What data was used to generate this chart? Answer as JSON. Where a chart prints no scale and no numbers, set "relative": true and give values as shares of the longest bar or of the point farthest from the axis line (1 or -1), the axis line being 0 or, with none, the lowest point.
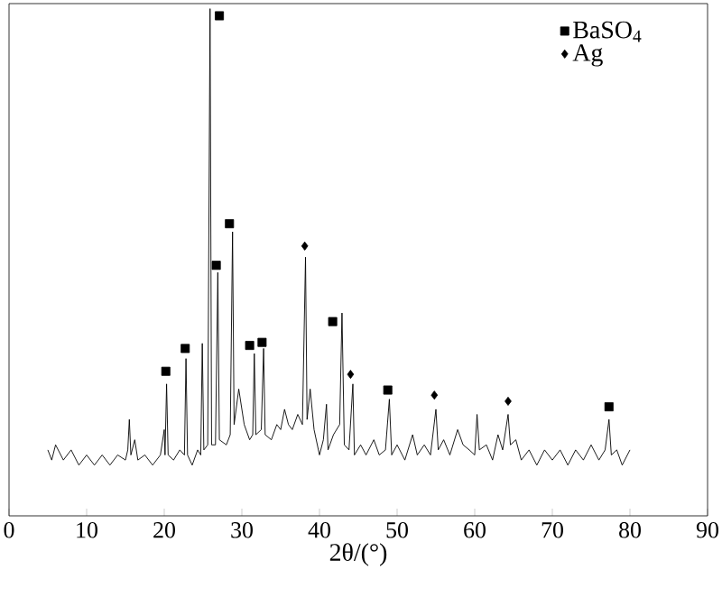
{
  "chart_data": {
    "type": "line",
    "relative": true,
    "xlabel": "2θ/(°)",
    "xlim": [
      0,
      90
    ],
    "xticks": [
      0,
      10,
      20,
      30,
      40,
      50,
      60,
      70,
      80,
      90
    ],
    "legend": "top right",
    "grid": false,
    "series": [
      {
        "color": "#000000",
        "marker": "none",
        "x": [
          5,
          5.5,
          6,
          7,
          8,
          9,
          10,
          11,
          12,
          13,
          14,
          15,
          15.3,
          15.5,
          15.7,
          16.2,
          16.6,
          17.5,
          18.5,
          19.5,
          20.0,
          20.1,
          20.3,
          20.5,
          21.2,
          22,
          22.6,
          22.8,
          23.0,
          23.6,
          24.3,
          24.7,
          24.9,
          25.1,
          25.6,
          25.9,
          26.1,
          26.6,
          26.9,
          27.1,
          28.0,
          28.5,
          28.8,
          29.0,
          29.6,
          30.3,
          31.0,
          31.4,
          31.6,
          31.8,
          32.5,
          32.8,
          33.0,
          33.8,
          34.5,
          35.0,
          35.5,
          36,
          36.5,
          37.2,
          37.8,
          38.2,
          38.4,
          38.8,
          39.3,
          40.0,
          40.5,
          40.9,
          41.1,
          41.8,
          42.6,
          42.9,
          43.2,
          43.8,
          44.3,
          44.5,
          45.3,
          46,
          47,
          47.7,
          48.5,
          49.0,
          49.3,
          50,
          51,
          52,
          52.6,
          53.5,
          54.3,
          55.0,
          55.3,
          56,
          56.8,
          57.8,
          58.5,
          59.3,
          60.0,
          60.3,
          60.6,
          61.5,
          62.3,
          63,
          63.6,
          64.3,
          64.6,
          65.3,
          66,
          67,
          68,
          69,
          70,
          71,
          72,
          73,
          74,
          75,
          76,
          76.8,
          77.3,
          77.6,
          78.3,
          79,
          80
        ],
        "values": [
          0.13,
          0.11,
          0.14,
          0.11,
          0.13,
          0.1,
          0.12,
          0.1,
          0.12,
          0.1,
          0.12,
          0.11,
          0.13,
          0.19,
          0.12,
          0.15,
          0.11,
          0.12,
          0.1,
          0.12,
          0.17,
          0.12,
          0.26,
          0.12,
          0.11,
          0.13,
          0.12,
          0.31,
          0.12,
          0.1,
          0.13,
          0.12,
          0.34,
          0.13,
          0.14,
          1.0,
          0.14,
          0.14,
          0.48,
          0.15,
          0.14,
          0.16,
          0.56,
          0.18,
          0.25,
          0.18,
          0.15,
          0.16,
          0.32,
          0.16,
          0.17,
          0.33,
          0.16,
          0.15,
          0.18,
          0.17,
          0.21,
          0.18,
          0.17,
          0.2,
          0.18,
          0.51,
          0.19,
          0.25,
          0.17,
          0.12,
          0.15,
          0.22,
          0.13,
          0.16,
          0.18,
          0.4,
          0.14,
          0.13,
          0.26,
          0.12,
          0.14,
          0.12,
          0.15,
          0.12,
          0.13,
          0.23,
          0.12,
          0.14,
          0.11,
          0.16,
          0.12,
          0.14,
          0.12,
          0.21,
          0.13,
          0.15,
          0.12,
          0.17,
          0.14,
          0.13,
          0.12,
          0.2,
          0.13,
          0.14,
          0.11,
          0.16,
          0.13,
          0.2,
          0.14,
          0.15,
          0.11,
          0.13,
          0.1,
          0.13,
          0.11,
          0.13,
          0.1,
          0.13,
          0.11,
          0.14,
          0.11,
          0.13,
          0.19,
          0.12,
          0.13,
          0.1,
          0.13
        ]
      },
      {
        "type": "scatter",
        "name": "BaSO$_{4}$",
        "color": "#000000",
        "marker": "square",
        "x": [
          20.2,
          22.7,
          26.7,
          27.1,
          28.4,
          31.0,
          32.6,
          41.7,
          48.8,
          77.3
        ],
        "values": [
          0.285,
          0.33,
          0.494,
          0.986,
          0.576,
          0.336,
          0.342,
          0.383,
          0.248,
          0.215
        ]
      },
      {
        "type": "scatter",
        "name": "Ag",
        "color": "#000000",
        "marker": "diamond",
        "x": [
          38.1,
          44.0,
          54.8,
          64.3
        ],
        "values": [
          0.532,
          0.279,
          0.238,
          0.226
        ]
      }
    ]
  }
}
